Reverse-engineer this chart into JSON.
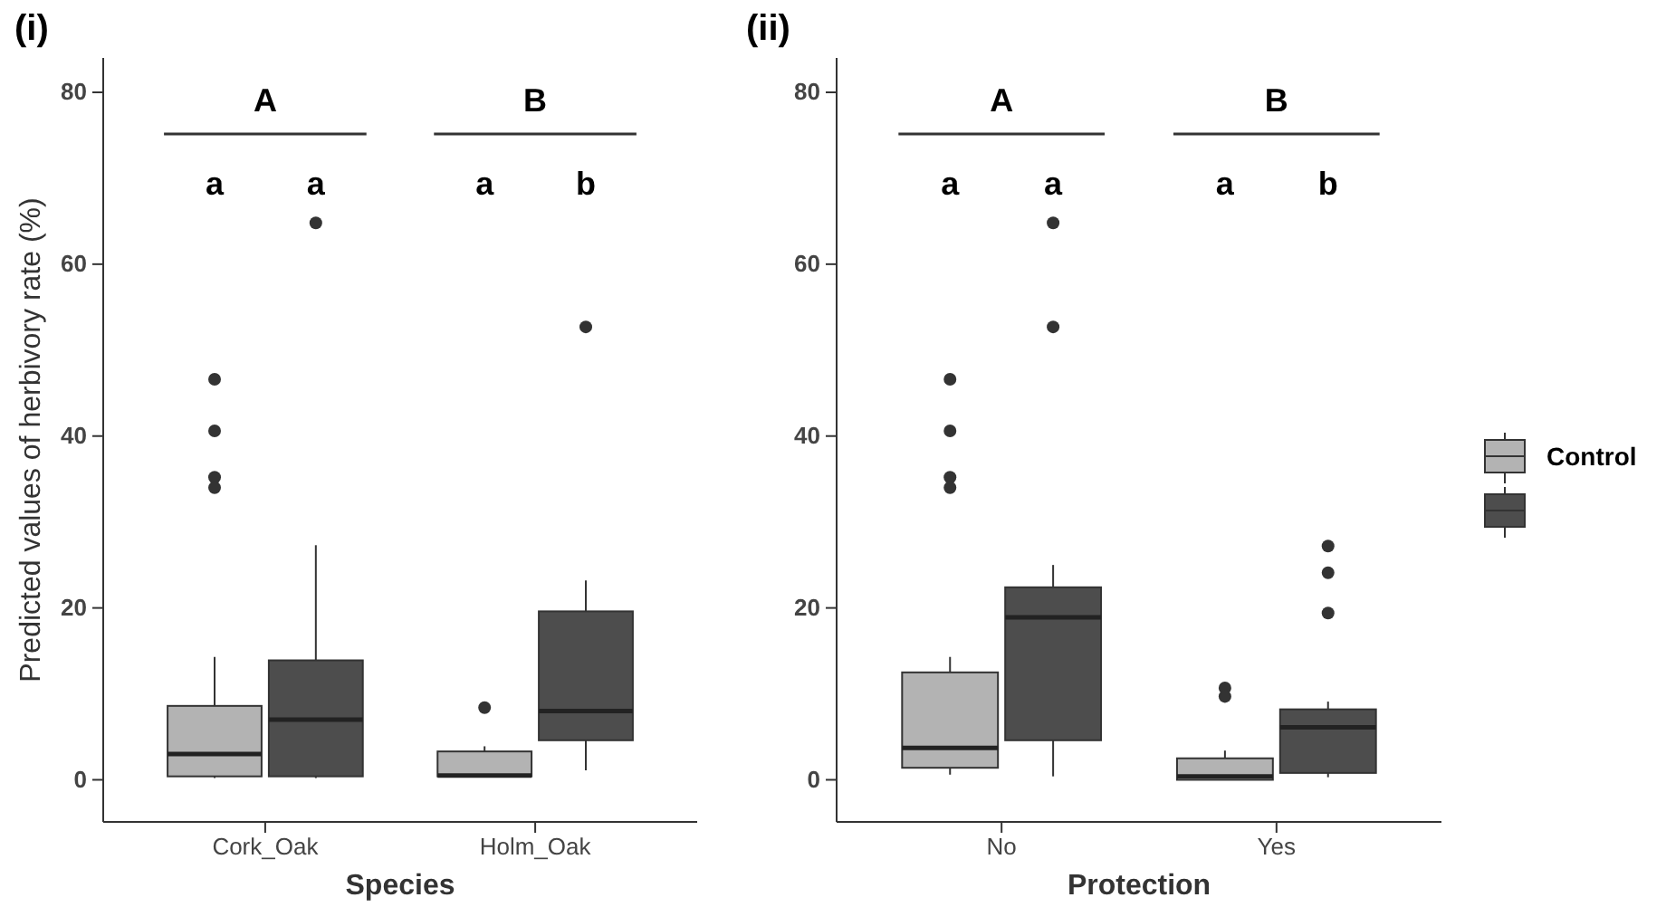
{
  "chart_data": [
    {
      "type": "box",
      "title": "(i)",
      "xlabel": "Species",
      "ylabel": "Predicted values of herbivory rate (%)",
      "categories": [
        "Cork_Oak",
        "Holm_Oak"
      ],
      "ylim": [
        -4.9,
        84
      ],
      "yticks": [
        0,
        20,
        40,
        60,
        80
      ],
      "grid": false,
      "series": [
        {
          "color": "#b3b3b3",
          "boxes": [
            {
              "low": 0.2,
              "q1": 0.4,
              "median": 3.0,
              "q3": 8.6,
              "high": 14.3,
              "outliers": [
                46.6,
                40.6,
                35.2,
                34.0
              ]
            },
            {
              "low": 0.3,
              "q1": 0.4,
              "median": 0.5,
              "q3": 3.3,
              "high": 3.9,
              "outliers": [
                8.4
              ]
            }
          ]
        },
        {
          "color": "#4d4d4d",
          "boxes": [
            {
              "low": 0.2,
              "q1": 0.4,
              "median": 7.0,
              "q3": 13.9,
              "high": 27.3,
              "outliers": [
                64.8
              ]
            },
            {
              "low": 1.1,
              "q1": 4.6,
              "median": 8.0,
              "q3": 19.6,
              "high": 23.2,
              "outliers": [
                52.7
              ]
            }
          ]
        }
      ],
      "annotations": [
        "A",
        "B",
        "a",
        "a",
        "a",
        "b"
      ]
    },
    {
      "type": "box",
      "title": "(ii)",
      "xlabel": "Protection",
      "categories": [
        "No",
        "Yes"
      ],
      "ylim": [
        -4.9,
        84
      ],
      "yticks": [
        0,
        20,
        40,
        60,
        80
      ],
      "grid": false,
      "legend": "right",
      "series": [
        {
          "name": "Control",
          "color": "#b3b3b3",
          "boxes": [
            {
              "low": 0.6,
              "q1": 1.4,
              "median": 3.7,
              "q3": 12.5,
              "high": 14.3,
              "outliers": [
                46.6,
                40.6,
                35.2,
                34.0
              ]
            },
            {
              "low": 0,
              "q1": 0,
              "median": 0.4,
              "q3": 2.5,
              "high": 3.4,
              "outliers": [
                10.7,
                9.7
              ]
            }
          ]
        },
        {
          "color": "#4d4d4d",
          "boxes": [
            {
              "low": 0.4,
              "q1": 4.6,
              "median": 18.9,
              "q3": 22.4,
              "high": 25.0,
              "outliers": [
                64.8,
                52.7
              ]
            },
            {
              "low": 0.3,
              "q1": 0.8,
              "median": 6.1,
              "q3": 8.2,
              "high": 9.1,
              "outliers": [
                27.2,
                24.1,
                19.4
              ]
            }
          ]
        }
      ],
      "annotations": [
        "A",
        "B",
        "a",
        "a",
        "a",
        "b"
      ]
    }
  ]
}
